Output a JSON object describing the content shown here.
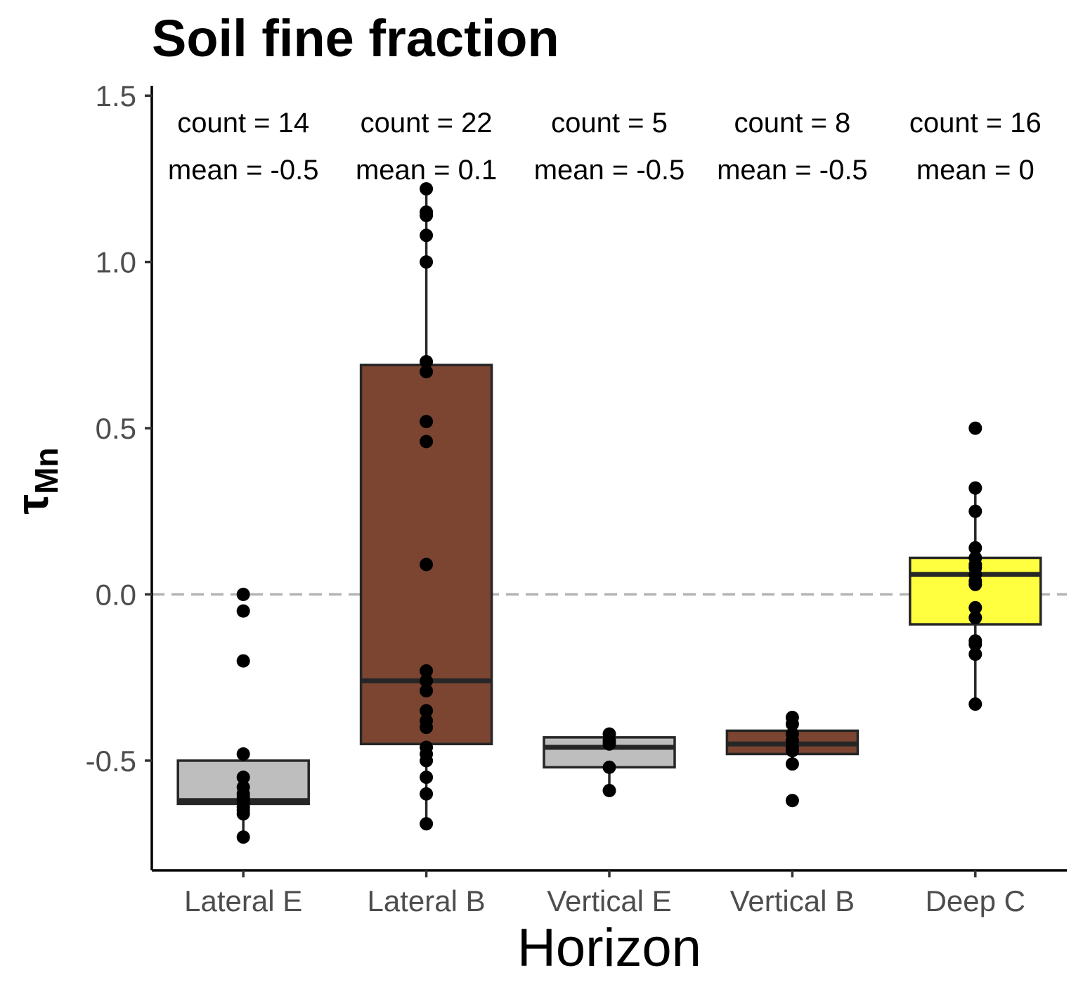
{
  "chart_data": {
    "type": "box",
    "title": "Soil fine fraction",
    "xlabel": "Horizon",
    "ylabel": "τ",
    "ylabel_subscript": "Mn",
    "ylim": [
      -0.83,
      1.53
    ],
    "yticks": [
      -0.5,
      0.0,
      0.5,
      1.0,
      1.5
    ],
    "ytick_labels": [
      "-0.5",
      "0.0",
      "0.5",
      "1.0",
      "1.5"
    ],
    "reference_line": {
      "y": 0.0,
      "style": "dashed",
      "color": "#b3b3b3"
    },
    "grid": false,
    "categories": [
      {
        "name": "Lateral E",
        "fill": "#bebebe",
        "count_label": "count = 14",
        "mean_label": "mean = -0.5",
        "q1": -0.63,
        "median": -0.62,
        "q3": -0.5,
        "whisker_low": -0.73,
        "whisker_high": -0.5,
        "points": [
          0.0,
          -0.05,
          -0.2,
          -0.48,
          -0.55,
          -0.58,
          -0.6,
          -0.61,
          -0.62,
          -0.63,
          -0.64,
          -0.65,
          -0.66,
          -0.73
        ]
      },
      {
        "name": "Lateral B",
        "fill": "#7b4531",
        "count_label": "count = 22",
        "mean_label": "mean = 0.1",
        "q1": -0.45,
        "median": -0.26,
        "q3": 0.69,
        "whisker_low": -0.69,
        "whisker_high": 1.22,
        "points": [
          1.22,
          1.15,
          1.14,
          1.08,
          1.0,
          0.7,
          0.67,
          0.52,
          0.46,
          0.09,
          -0.23,
          -0.29,
          -0.35,
          -0.38,
          -0.4,
          -0.46,
          -0.48,
          -0.5,
          -0.55,
          -0.6,
          -0.69,
          -0.26
        ]
      },
      {
        "name": "Vertical E",
        "fill": "#bebebe",
        "count_label": "count = 5",
        "mean_label": "mean = -0.5",
        "q1": -0.52,
        "median": -0.46,
        "q3": -0.43,
        "whisker_low": -0.59,
        "whisker_high": -0.42,
        "points": [
          -0.42,
          -0.45,
          -0.52,
          -0.59,
          -0.44
        ]
      },
      {
        "name": "Vertical B",
        "fill": "#7b4531",
        "count_label": "count = 8",
        "mean_label": "mean = -0.5",
        "q1": -0.48,
        "median": -0.45,
        "q3": -0.41,
        "whisker_low": -0.51,
        "whisker_high": -0.38,
        "points": [
          -0.37,
          -0.39,
          -0.42,
          -0.44,
          -0.46,
          -0.47,
          -0.51,
          -0.62
        ]
      },
      {
        "name": "Deep C",
        "fill": "#ffff40",
        "count_label": "count = 16",
        "mean_label": "mean = 0",
        "q1": -0.09,
        "median": 0.06,
        "q3": 0.11,
        "whisker_low": -0.33,
        "whisker_high": 0.31,
        "points": [
          0.5,
          0.32,
          0.25,
          0.14,
          0.11,
          0.09,
          0.06,
          0.03,
          -0.04,
          -0.07,
          -0.14,
          -0.15,
          -0.18,
          -0.33,
          0.08,
          0.04
        ]
      }
    ]
  }
}
